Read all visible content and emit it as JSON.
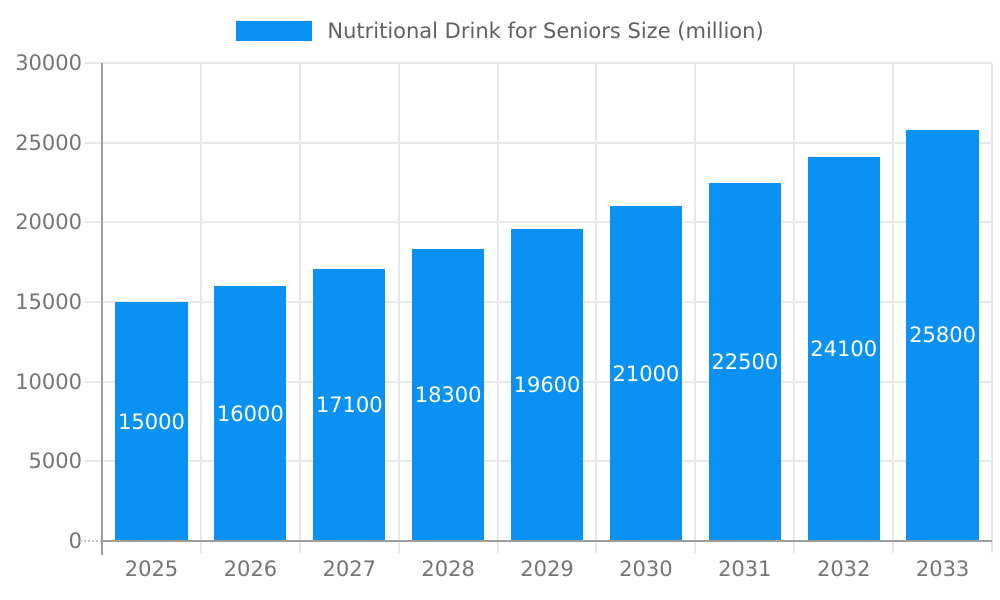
{
  "chart_data": {
    "type": "bar",
    "title": "Nutritional Drink for Seniors Size (million)",
    "legend_entries": [
      "Nutritional Drink for Seniors Size (million)"
    ],
    "legend_position": "top",
    "categories": [
      "2025",
      "2026",
      "2027",
      "2028",
      "2029",
      "2030",
      "2031",
      "2032",
      "2033"
    ],
    "values": [
      15000,
      16000,
      17100,
      18300,
      19600,
      21000,
      22500,
      24100,
      25800
    ],
    "bar_value_labels": [
      "15000",
      "16000",
      "17100",
      "18300",
      "19600",
      "21000",
      "22500",
      "24100",
      "25800"
    ],
    "xlabel": "",
    "ylabel": "",
    "ylim": [
      0,
      30000
    ],
    "y_ticks": [
      0,
      5000,
      10000,
      15000,
      20000,
      25000,
      30000
    ],
    "grid": true,
    "colors": {
      "bar": "#0992f3",
      "grid": "#e8e8e8",
      "axis": "#9e9e9e",
      "tick_text": "#757575",
      "bar_label_text": "#ffffff",
      "legend_text": "#616161",
      "background": "#ffffff"
    }
  }
}
